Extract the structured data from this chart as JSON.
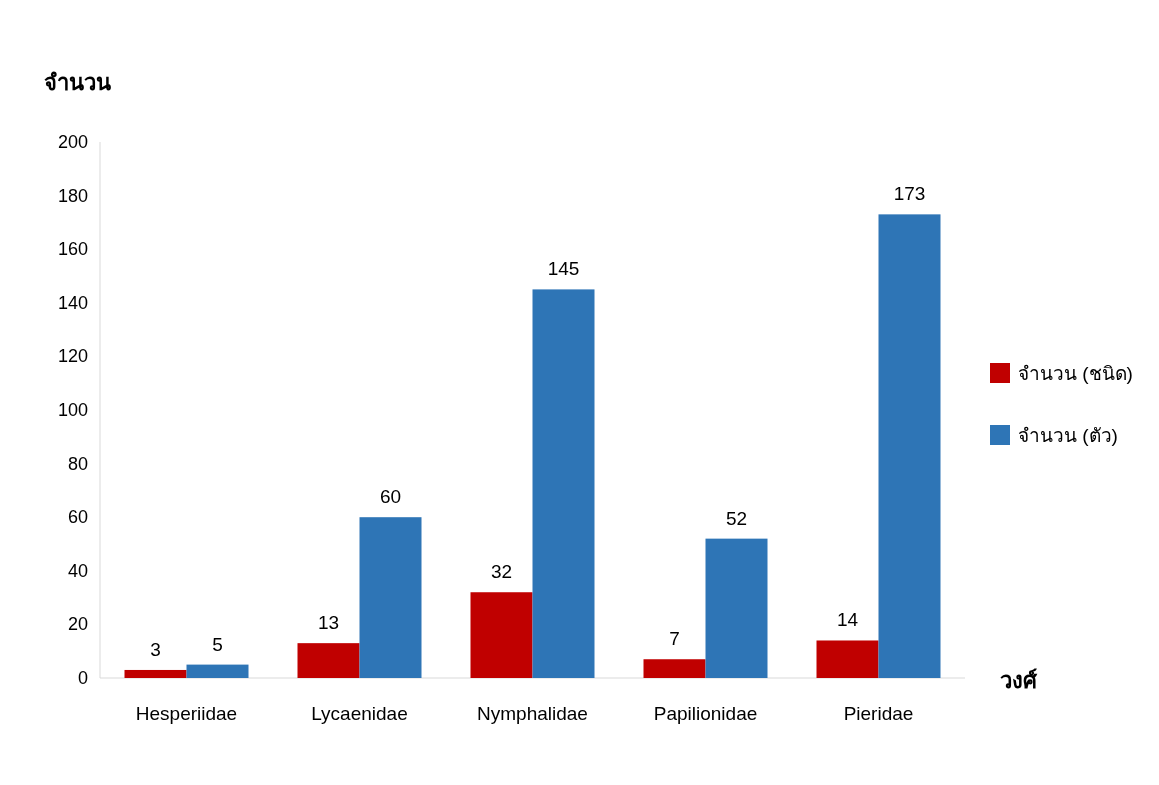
{
  "chart_data": {
    "type": "bar",
    "ylabel": "จำนวน",
    "xlabel": "วงศ์",
    "categories": [
      "Hesperiidae",
      "Lycaenidae",
      "Nymphalidae",
      "Papilionidae",
      "Pieridae"
    ],
    "series": [
      {
        "name": "จำนวน (ชนิด)",
        "color": "#c00000",
        "values": [
          3,
          13,
          32,
          7,
          14
        ]
      },
      {
        "name": "จำนวน (ตัว)",
        "color": "#2e75b6",
        "values": [
          5,
          60,
          145,
          52,
          173
        ]
      }
    ],
    "ylim": [
      0,
      200
    ],
    "yticks": [
      0,
      20,
      40,
      60,
      80,
      100,
      120,
      140,
      160,
      180,
      200
    ],
    "data_labels": true,
    "legend": "right",
    "grid": false
  }
}
